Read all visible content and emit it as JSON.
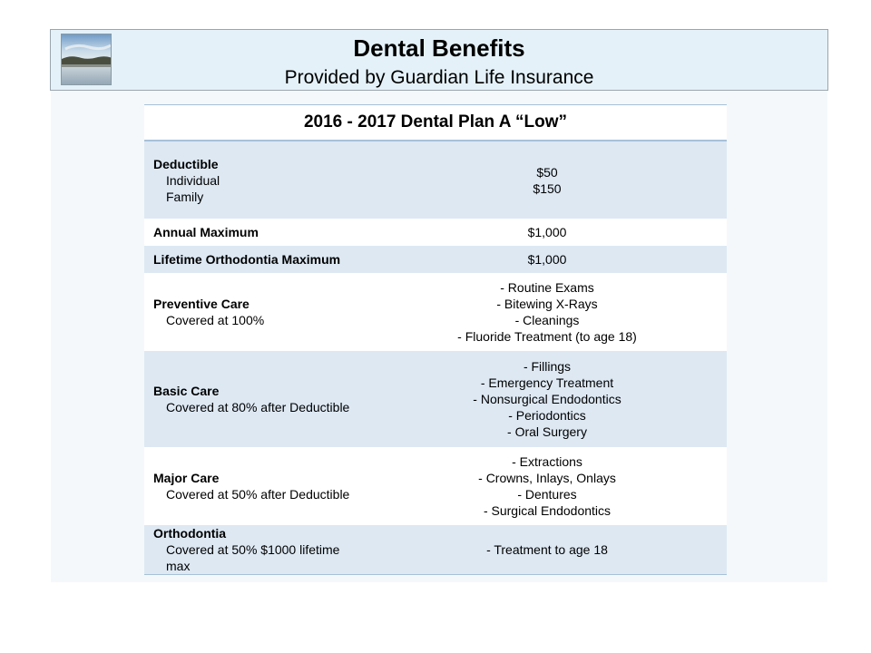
{
  "header": {
    "title": "Dental Benefits",
    "subtitle": "Provided by Guardian Life Insurance",
    "logo_icon": "lake-landscape-photo"
  },
  "table": {
    "title": "2016 - 2017 Dental Plan A “Low”",
    "rows": [
      {
        "label": "Deductible",
        "sublabels": [
          "Individual",
          "Family"
        ],
        "values": [
          "$50",
          "$150"
        ]
      },
      {
        "label": "Annual Maximum",
        "sublabels": [],
        "values": [
          "$1,000"
        ]
      },
      {
        "label": "Lifetime Orthodontia Maximum",
        "sublabels": [],
        "values": [
          "$1,000"
        ]
      },
      {
        "label": "Preventive Care",
        "sublabels": [
          "Covered at 100%"
        ],
        "values": [
          "- Routine Exams",
          "- Bitewing X-Rays",
          "- Cleanings",
          "- Fluoride Treatment (to age 18)"
        ]
      },
      {
        "label": "Basic Care",
        "sublabels": [
          "Covered at 80% after Deductible"
        ],
        "values": [
          "- Fillings",
          "- Emergency Treatment",
          "- Nonsurgical Endodontics",
          "- Periodontics",
          "- Oral Surgery"
        ]
      },
      {
        "label": "Major Care",
        "sublabels": [
          "Covered at 50% after Deductible"
        ],
        "values": [
          "- Extractions",
          "- Crowns, Inlays, Onlays",
          "- Dentures",
          "- Surgical Endodontics"
        ]
      },
      {
        "label": "Orthodontia",
        "sublabels": [
          "Covered at 50% $1000 lifetime max"
        ],
        "values": [
          "- Treatment to age 18"
        ]
      }
    ]
  },
  "colors": {
    "banner_bg": "#e4f1f8",
    "row_shade": "#dde8f3",
    "table_rule": "#a7c1d8"
  }
}
